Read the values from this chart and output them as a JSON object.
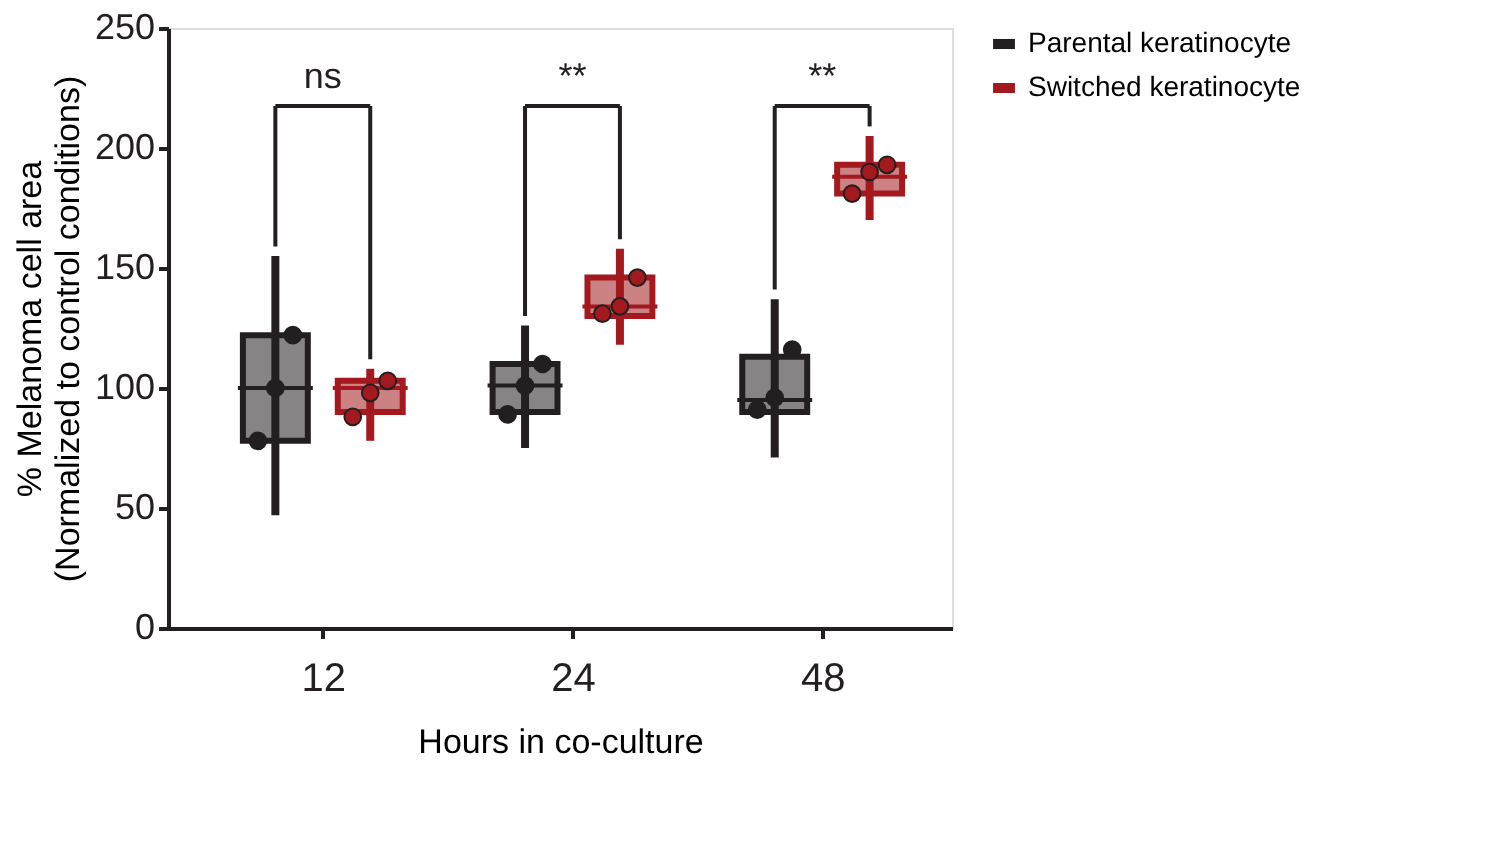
{
  "chart_data": {
    "type": "box",
    "xlabel": "Hours in co-culture",
    "ylabel": "% Melanoma cell area\n(Normalized to control conditions)",
    "categories": [
      "12",
      "24",
      "48"
    ],
    "ylim": [
      0,
      250
    ],
    "yticks": [
      0,
      50,
      100,
      150,
      200,
      250
    ],
    "grid": false,
    "legend": "top right",
    "series": [
      {
        "name": "Parental keratinocyte",
        "color": "#231f20",
        "boxes": [
          {
            "low": 47,
            "q1": 78,
            "median": 100,
            "q3": 122,
            "high": 155
          },
          {
            "low": 75,
            "q1": 90,
            "median": 101,
            "q3": 110,
            "high": 126
          },
          {
            "low": 71,
            "q1": 90,
            "median": 95,
            "q3": 113,
            "high": 137
          }
        ]
      },
      {
        "name": "Switched keratinocyte",
        "color": "#a3191e",
        "boxes": [
          {
            "low": 78,
            "q1": 90,
            "median": 100,
            "q3": 103,
            "high": 108
          },
          {
            "low": 118,
            "q1": 130,
            "median": 134,
            "q3": 146,
            "high": 158
          },
          {
            "low": 170,
            "q1": 181,
            "median": 188,
            "q3": 193,
            "high": 205
          }
        ]
      },
      {
        "type": "scatter",
        "color": "#231f20",
        "x": [
          "12",
          "12",
          "12",
          "24",
          "24",
          "24",
          "48",
          "48",
          "48"
        ],
        "values": [
          78,
          100,
          122,
          89,
          101,
          110,
          91,
          96,
          116
        ],
        "marker": "circle"
      },
      {
        "type": "scatter",
        "color": "#a3191e",
        "x": [
          "12",
          "12",
          "12",
          "24",
          "24",
          "24",
          "48",
          "48",
          "48"
        ],
        "values": [
          88,
          98,
          103,
          131,
          134,
          146,
          181,
          190,
          193
        ],
        "marker": "circle"
      }
    ],
    "annotations": [
      "ns",
      "**",
      "**"
    ]
  }
}
